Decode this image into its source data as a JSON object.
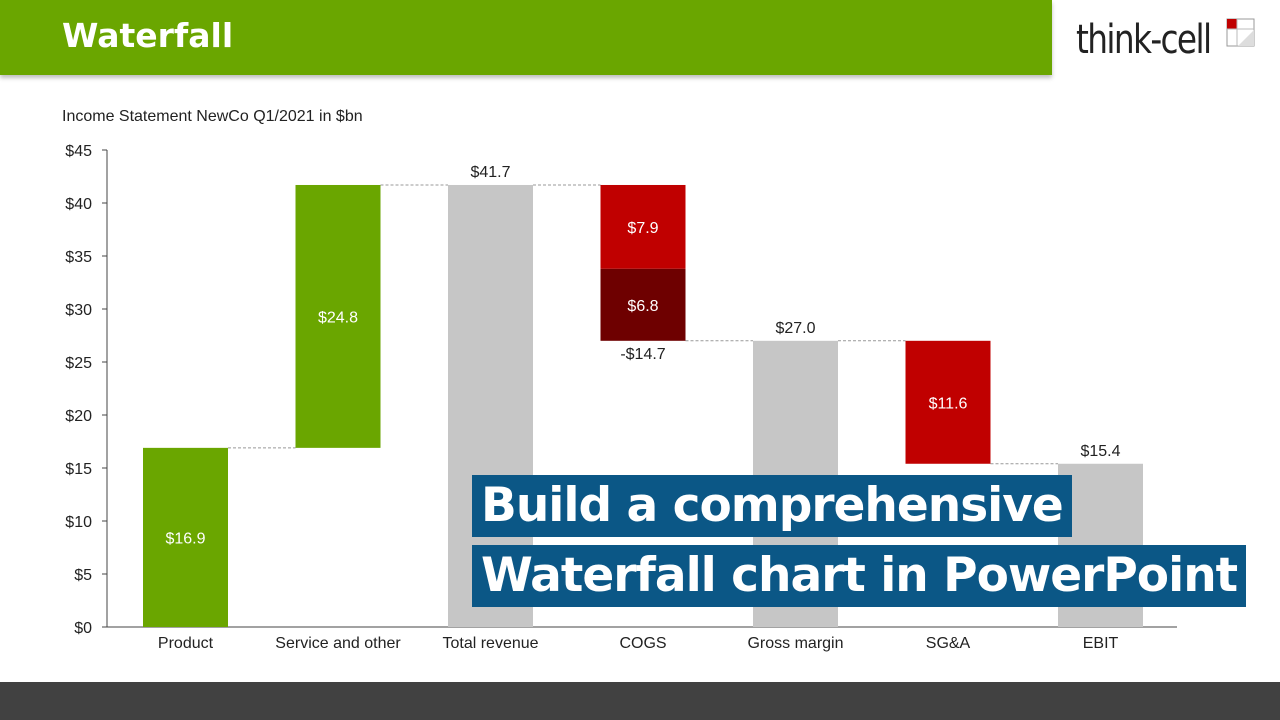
{
  "header": {
    "title": "Waterfall",
    "brand": "think-cell",
    "accent_color": "#6aa600"
  },
  "overlay": {
    "line1": "Build a comprehensive",
    "line2": "Waterfall chart in PowerPoint",
    "bg_color": "#0b5786"
  },
  "chart_data": {
    "type": "waterfall",
    "title": "Income Statement NewCo Q1/2021 in $bn",
    "ylim": [
      0,
      45
    ],
    "y_ticks": [
      "$0",
      "$5",
      "$10",
      "$15",
      "$20",
      "$25",
      "$30",
      "$35",
      "$40",
      "$45"
    ],
    "y_tick_values": [
      0,
      5,
      10,
      15,
      20,
      25,
      30,
      35,
      40,
      45
    ],
    "categories": [
      "Product",
      "Service and other",
      "Total revenue",
      "COGS",
      "Gross margin",
      "SG&A",
      "EBIT"
    ],
    "colors": {
      "positive": "#6aa600",
      "total": "#c6c6c6",
      "negative": "#c00000",
      "negative_dark": "#6e0000"
    },
    "bars": [
      {
        "category": "Product",
        "kind": "positive",
        "segments": [
          {
            "start": 0,
            "end": 16.9,
            "label": "$16.9",
            "color": "positive"
          }
        ]
      },
      {
        "category": "Service and other",
        "kind": "positive",
        "segments": [
          {
            "start": 16.9,
            "end": 41.7,
            "label": "$24.8",
            "color": "positive"
          }
        ]
      },
      {
        "category": "Total revenue",
        "kind": "total",
        "top_label": "$41.7",
        "segments": [
          {
            "start": 0,
            "end": 41.7,
            "label": "",
            "color": "total"
          }
        ]
      },
      {
        "category": "COGS",
        "kind": "negative",
        "bottom_label": "-$14.7",
        "segments": [
          {
            "start": 27.0,
            "end": 33.8,
            "label": "$6.8",
            "color": "negative_dark"
          },
          {
            "start": 33.8,
            "end": 41.7,
            "label": "$7.9",
            "color": "negative"
          }
        ]
      },
      {
        "category": "Gross margin",
        "kind": "total",
        "top_label": "$27.0",
        "segments": [
          {
            "start": 0,
            "end": 27.0,
            "label": "",
            "color": "total"
          }
        ]
      },
      {
        "category": "SG&A",
        "kind": "negative",
        "segments": [
          {
            "start": 15.4,
            "end": 27.0,
            "label": "$11.6",
            "color": "negative"
          }
        ]
      },
      {
        "category": "EBIT",
        "kind": "total",
        "top_label": "$15.4",
        "segments": [
          {
            "start": 0,
            "end": 15.4,
            "label": "",
            "color": "total"
          }
        ]
      }
    ],
    "connectors": [
      16.9,
      41.7,
      41.7,
      27.0,
      27.0,
      15.4
    ]
  }
}
